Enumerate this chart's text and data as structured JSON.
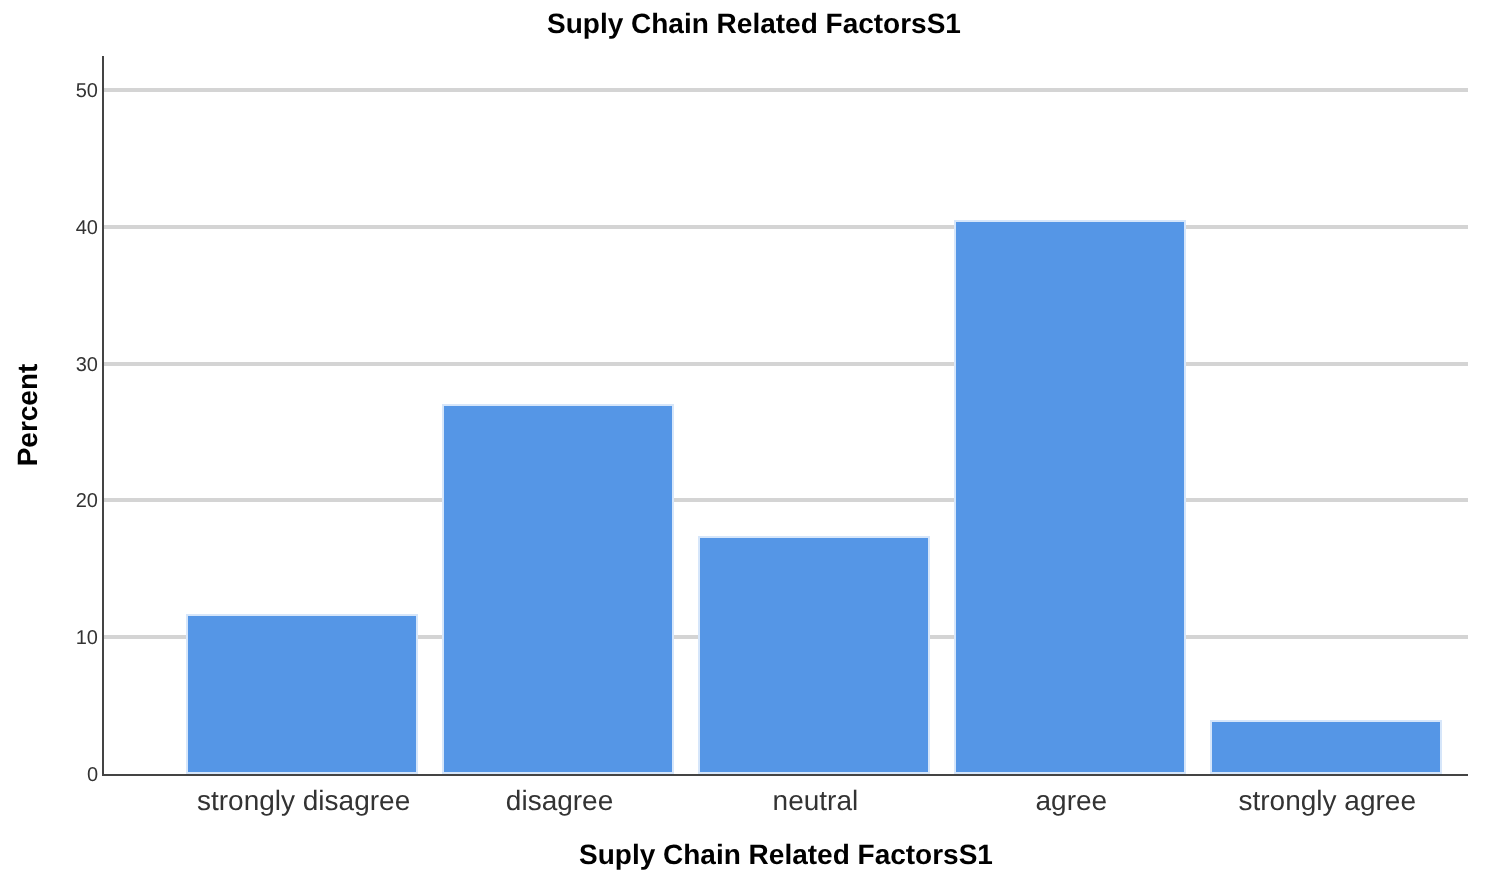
{
  "chart_data": {
    "type": "bar",
    "title": "Suply Chain Related FactorsS1",
    "xlabel": "Suply Chain Related FactorsS1",
    "ylabel": "Percent",
    "categories": [
      "strongly disagree",
      "disagree",
      "neutral",
      "agree",
      "strongly agree"
    ],
    "values": [
      11.5,
      26.9,
      17.3,
      40.4,
      3.8
    ],
    "color": "#5596e6",
    "ylim": [
      0,
      52.5
    ],
    "yticks": [
      0,
      10,
      20,
      30,
      40,
      50
    ],
    "grid": "y"
  }
}
